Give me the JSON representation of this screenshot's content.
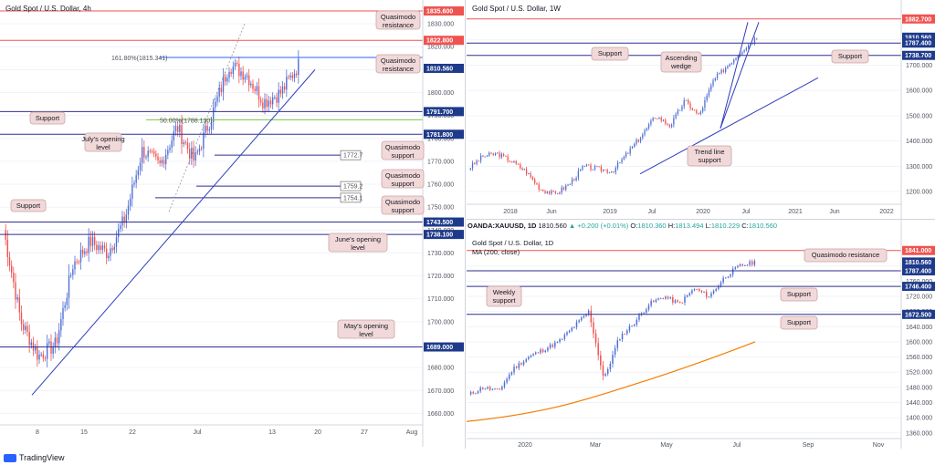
{
  "panels": {
    "left": {
      "title": "Gold Spot / U.S. Dollar, 4h",
      "y_ticks": [
        "1830.000",
        "1820.000",
        "1810.000",
        "1800.000",
        "1790.000",
        "1780.000",
        "1770.000",
        "1760.000",
        "1750.000",
        "1740.000",
        "1730.000",
        "1720.000",
        "1710.000",
        "1700.000",
        "1690.000",
        "1680.000",
        "1670.000",
        "1660.000"
      ],
      "y_values": [
        1830,
        1820,
        1810,
        1800,
        1790,
        1780,
        1770,
        1760,
        1750,
        1740,
        1730,
        1720,
        1710,
        1700,
        1690,
        1680,
        1670,
        1660
      ],
      "x_ticks": [
        "8",
        "15",
        "22",
        "Jul",
        "13",
        "20",
        "27",
        "Aug"
      ],
      "price_tags": [
        {
          "label": "1835.600",
          "value": 1835.6,
          "color": "#ef5350"
        },
        {
          "label": "1822.800",
          "value": 1822.8,
          "color": "#ef5350"
        },
        {
          "label": "1810.560",
          "value": 1810.56,
          "color": "#1e3a8a"
        },
        {
          "label": "1791.700",
          "value": 1791.7,
          "color": "#1e3a8a"
        },
        {
          "label": "1781.800",
          "value": 1781.8,
          "color": "#1e3a8a"
        },
        {
          "label": "1743.500",
          "value": 1743.5,
          "color": "#1e3a8a"
        },
        {
          "label": "1738.100",
          "value": 1738.1,
          "color": "#1e3a8a"
        },
        {
          "label": "1689.000",
          "value": 1689.0,
          "color": "#1e3a8a"
        }
      ],
      "fib_labels": [
        "161.80%(1815.341)",
        "50.00%(1788.130)"
      ],
      "small_levels": [
        "1772.7",
        "1759.2",
        "1754.1"
      ],
      "callouts": [
        "Quasimodo resistance",
        "Quasimodo resistance",
        "Support",
        "July's opening level",
        "Quasimodo support",
        "Quasimodo support",
        "Quasimodo support",
        "Support",
        "June's opening level",
        "May's opening level"
      ]
    },
    "weekly": {
      "title": "Gold Spot / U.S. Dollar, 1W",
      "y_ticks": [
        "1800.000",
        "1700.000",
        "1600.000",
        "1500.000",
        "1400.000",
        "1300.000",
        "1200.000"
      ],
      "y_values": [
        1800,
        1700,
        1600,
        1500,
        1400,
        1300,
        1200
      ],
      "x_ticks": [
        "2018",
        "Jun",
        "2019",
        "Jul",
        "2020",
        "Jul",
        "2021",
        "Jun",
        "2022"
      ],
      "price_tags": [
        {
          "label": "1882.700",
          "value": 1882.7,
          "color": "#ef5350"
        },
        {
          "label": "1810.560",
          "value": 1810.56,
          "color": "#1e3a8a"
        },
        {
          "label": "1787.400",
          "value": 1787.4,
          "color": "#1e3a8a"
        },
        {
          "label": "1738.700",
          "value": 1738.7,
          "color": "#1e3a8a"
        }
      ],
      "callouts": [
        "Support",
        "Ascending wedge",
        "Support",
        "Trend line support"
      ]
    },
    "daily": {
      "title": "OANDA:XAUUSD, 1D",
      "ohlc": {
        "last": "1810.560",
        "change": "▲ +0.200 (+0.01%)",
        "o_label": "O:",
        "o": "1810.360",
        "h_label": "H:",
        "h": "1813.494",
        "l_label": "L:",
        "l": "1810.229",
        "c_label": "C:",
        "c": "1810.560"
      },
      "title2": "Gold Spot / U.S. Dollar, 1D",
      "ma_label": "MA (200, close)",
      "y_ticks": [
        "1800.000",
        "1760.000",
        "1720.000",
        "1680.000",
        "1640.000",
        "1600.000",
        "1560.000",
        "1520.000",
        "1480.000",
        "1440.000",
        "1400.000",
        "1360.000"
      ],
      "y_values": [
        1800,
        1760,
        1720,
        1680,
        1640,
        1600,
        1560,
        1520,
        1480,
        1440,
        1400,
        1360
      ],
      "x_ticks": [
        "2020",
        "Mar",
        "May",
        "Jul",
        "Sep",
        "Nov"
      ],
      "price_tags": [
        {
          "label": "1841.000",
          "value": 1841,
          "color": "#ef5350"
        },
        {
          "label": "1810.560",
          "value": 1810.56,
          "color": "#1e3a8a"
        },
        {
          "label": "1787.400",
          "value": 1787.4,
          "color": "#1e3a8a"
        },
        {
          "label": "1746.400",
          "value": 1746.4,
          "color": "#1e3a8a"
        },
        {
          "label": "1672.500",
          "value": 1672.5,
          "color": "#1e3a8a"
        }
      ],
      "callouts": [
        "Quasimodo resistance",
        "Weekly support",
        "Support",
        "Support"
      ]
    }
  },
  "brand": "TradingView",
  "chart_data": [
    {
      "type": "candlestick",
      "title": "Gold Spot / U.S. Dollar, 4h",
      "ylim": [
        1655,
        1838
      ],
      "x_tick_labels": [
        "8",
        "15",
        "22",
        "Jul",
        "13",
        "20",
        "27",
        "Aug"
      ],
      "levels": [
        1835.6,
        1822.8,
        1815.341,
        1810.56,
        1791.7,
        1788.13,
        1781.8,
        1772.7,
        1759.2,
        1754.1,
        1743.5,
        1738.1,
        1689.0
      ],
      "last_price": 1810.56
    },
    {
      "type": "candlestick",
      "title": "Gold Spot / U.S. Dollar, 1W",
      "ylim": [
        1150,
        1900
      ],
      "x_tick_labels": [
        "2018",
        "Jun",
        "2019",
        "Jul",
        "2020",
        "Jul",
        "2021",
        "Jun",
        "2022"
      ],
      "levels": [
        1882.7,
        1810.56,
        1787.4,
        1738.7
      ],
      "last_price": 1810.56
    },
    {
      "type": "candlestick",
      "title": "Gold Spot / U.S. Dollar, 1D",
      "ylim": [
        1345,
        1850
      ],
      "x_tick_labels": [
        "2020",
        "Mar",
        "May",
        "Jul",
        "Sep",
        "Nov"
      ],
      "levels": [
        1841.0,
        1810.56,
        1787.4,
        1746.4,
        1672.5
      ],
      "last_price": 1810.56,
      "series": [
        {
          "name": "MA (200, close)"
        }
      ]
    }
  ],
  "colors": {
    "up": "#4f6fd6",
    "down": "#ef5350",
    "support": "#2f2f8f",
    "resistance": "#ef5350",
    "ma": "#f57c00",
    "callout_bg": "#f2d9d9",
    "callout_border": "#c9a3a3",
    "fib": "#76c442"
  }
}
